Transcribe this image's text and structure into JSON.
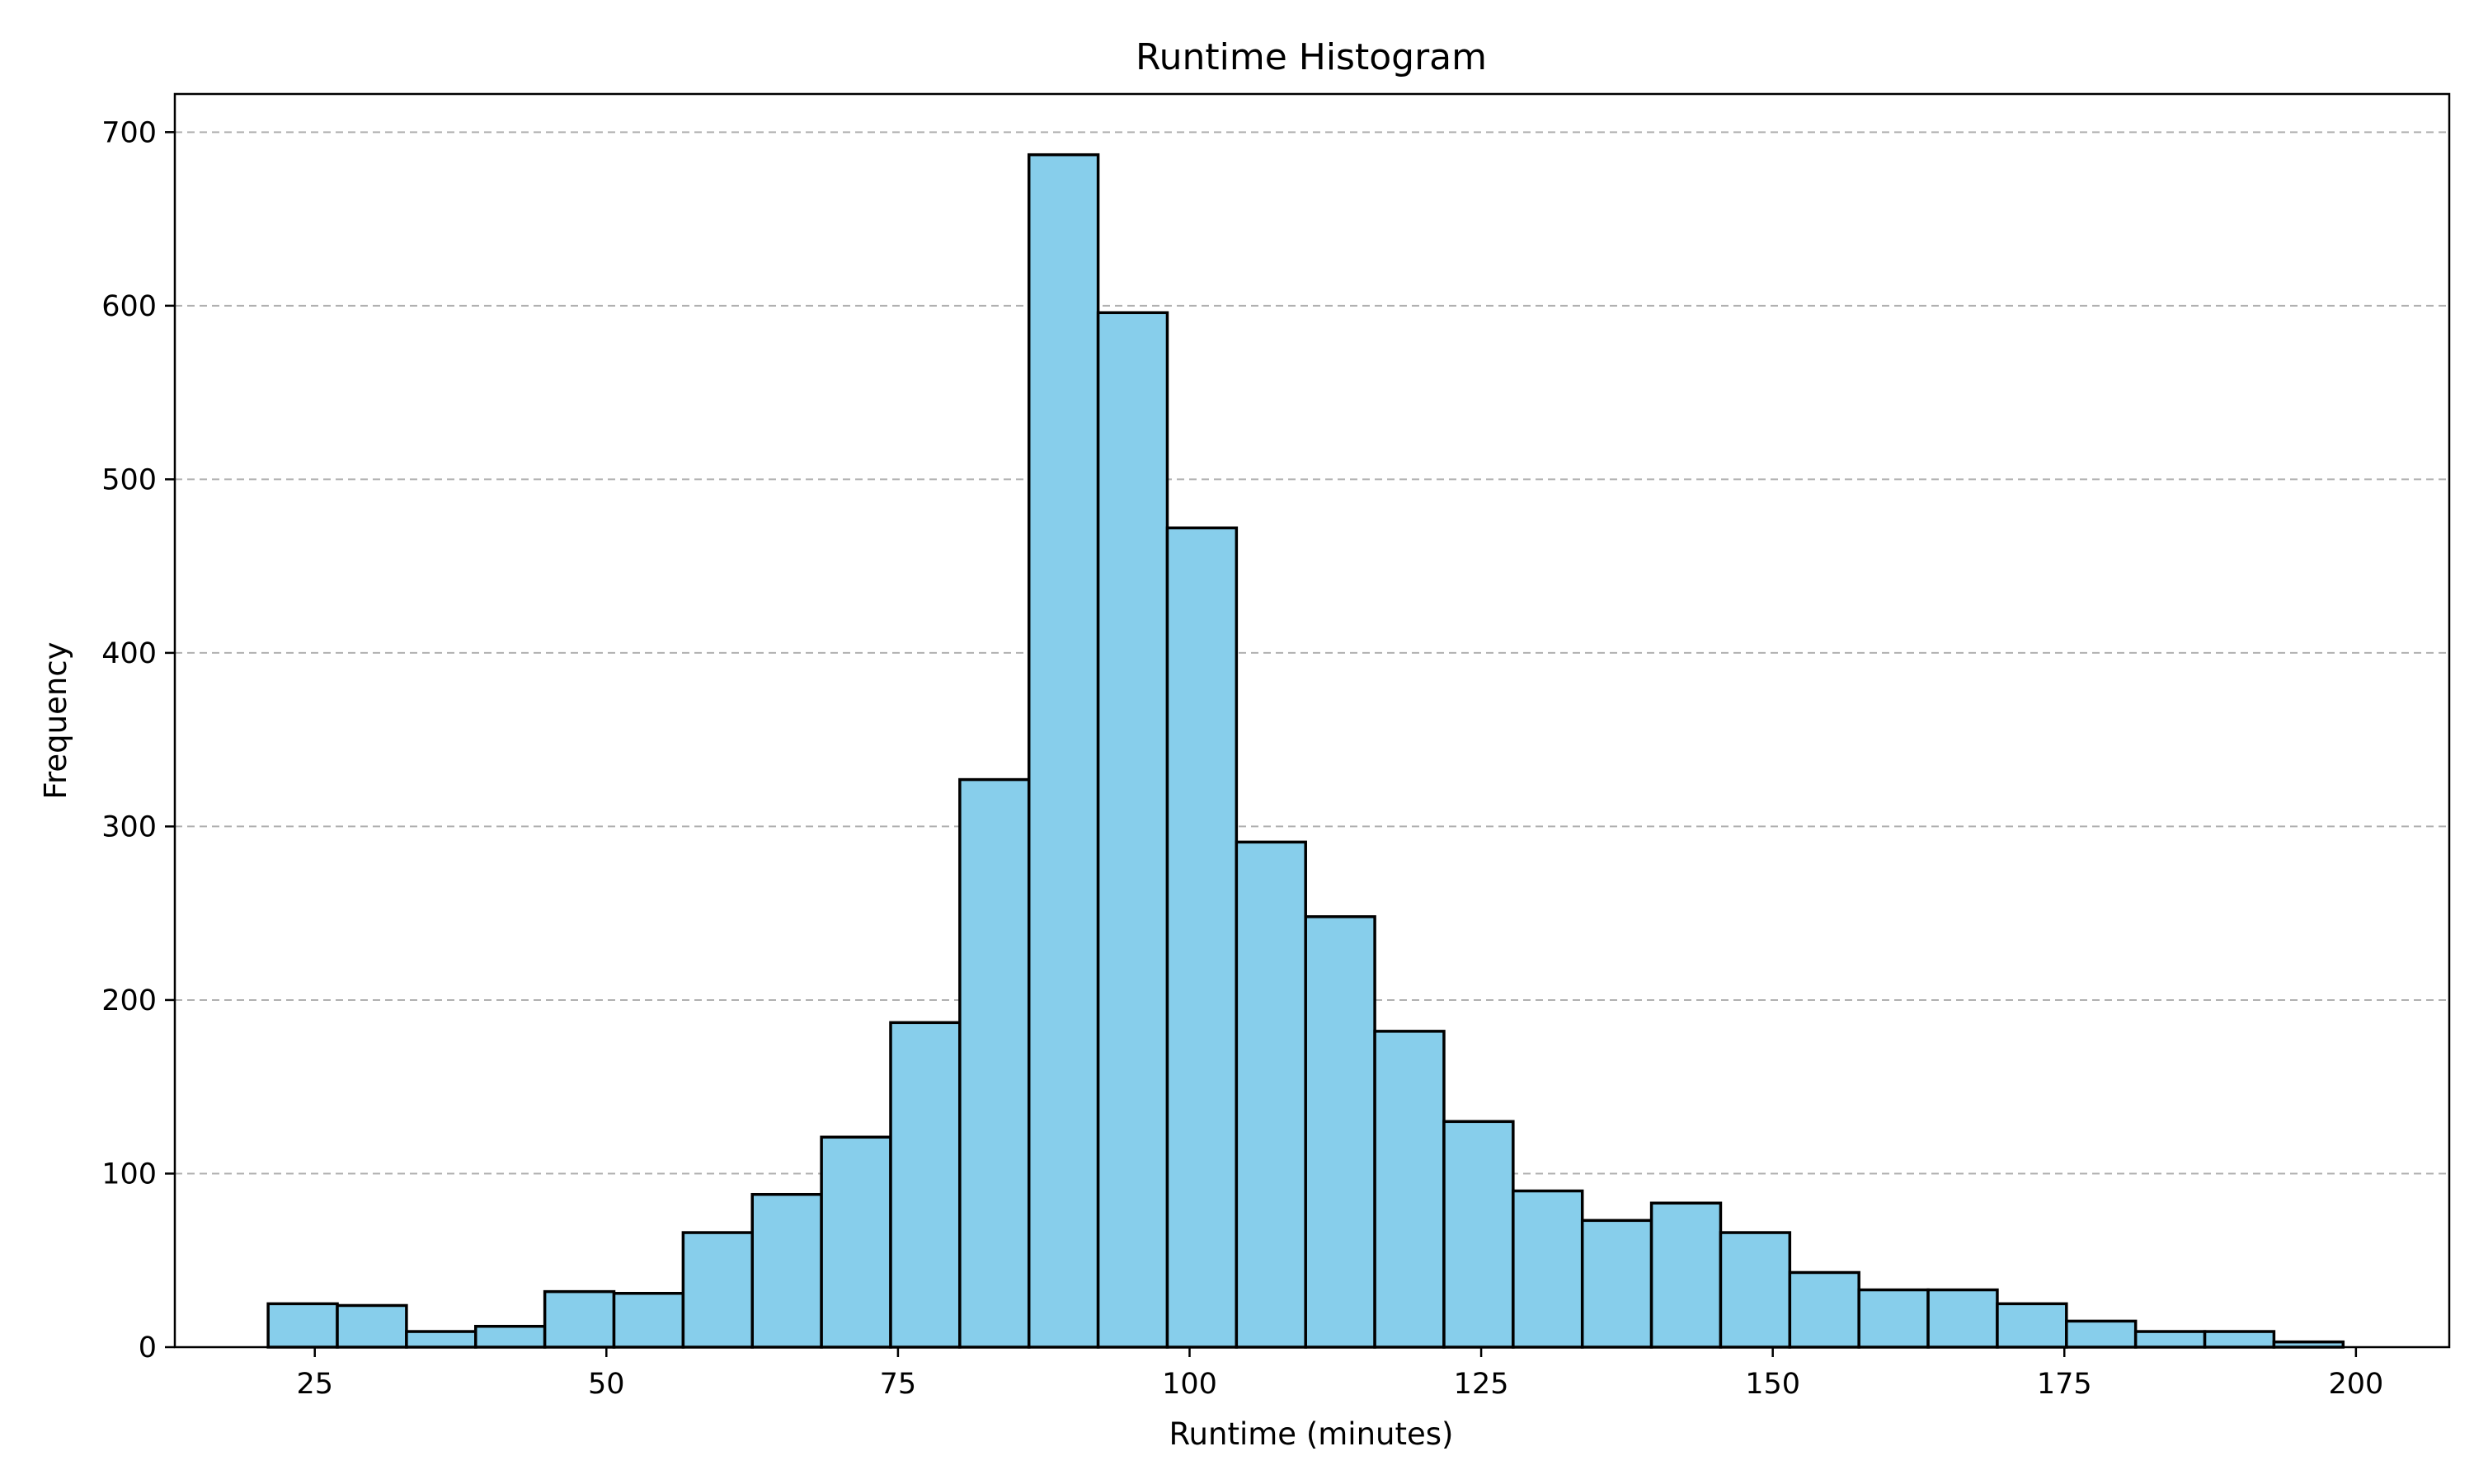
{
  "chart_data": {
    "type": "bar",
    "subtype": "histogram",
    "title": "Runtime Histogram",
    "xlabel": "Runtime (minutes)",
    "ylabel": "Frequency",
    "xlim": [
      13,
      208
    ],
    "ylim": [
      0,
      722
    ],
    "xticks": [
      25,
      50,
      75,
      100,
      125,
      150,
      175,
      200
    ],
    "yticks": [
      0,
      100,
      200,
      300,
      400,
      500,
      600,
      700
    ],
    "grid": {
      "axis": "y",
      "style": "dashed"
    },
    "legend": "none",
    "bar_color": "#87ceeb",
    "edge_color": "#000000",
    "bin_start": 21,
    "bin_width": 5.93,
    "values": [
      25,
      24,
      9,
      12,
      32,
      31,
      66,
      88,
      121,
      187,
      327,
      687,
      596,
      472,
      291,
      248,
      182,
      130,
      90,
      73,
      83,
      66,
      43,
      33,
      33,
      25,
      15,
      9,
      9,
      3
    ]
  }
}
